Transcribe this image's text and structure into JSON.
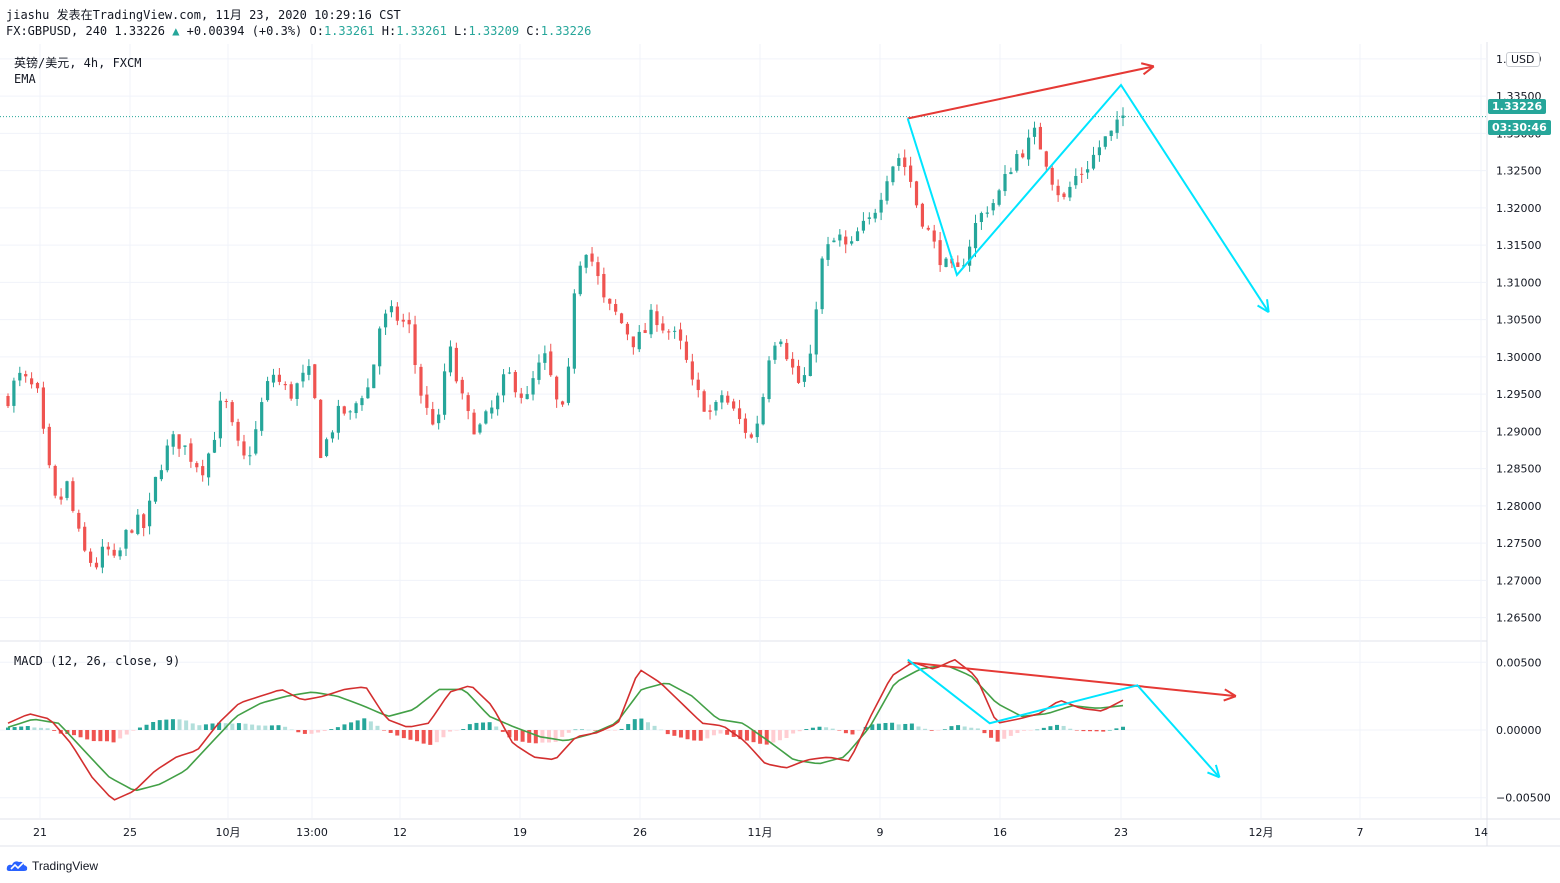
{
  "header": {
    "line1": "jiashu 发表在TradingView.com, 11月 23, 2020 10:29:16 CST",
    "symbol": "FX:GBPUSD, 240",
    "price": "1.33226",
    "change": "+0.00394 (+0.3%)",
    "open_label": "O:",
    "open": "1.33261",
    "high_label": "H:",
    "high": "1.33261",
    "low_label": "L:",
    "low": "1.33209",
    "close_label": "C:",
    "close": "1.33226"
  },
  "pane_title": "英镑/美元, 4h, FXCM",
  "indicator_label": "EMA",
  "macd_label": "MACD (12, 26, close, 9)",
  "currency": "USD",
  "last_price_badge": "1.33226",
  "countdown_badge": "03:30:46",
  "footer_brand": "TradingView",
  "colors": {
    "up": "#26a69a",
    "down": "#ef5350",
    "macd": "#d32f2f",
    "signal": "#43a047",
    "annot_red": "#e53935",
    "annot_cyan": "#00e5ff"
  },
  "chart_data": [
    {
      "type": "candlestick",
      "pair": "GBPUSD",
      "timeframe": "4h",
      "ylim": [
        1.262,
        1.342
      ],
      "yticks": [
        "1.34000",
        "1.33500",
        "1.33000",
        "1.32500",
        "1.32000",
        "1.31500",
        "1.31000",
        "1.30500",
        "1.30000",
        "1.29500",
        "1.29000",
        "1.28500",
        "1.28000",
        "1.27500",
        "1.27000",
        "1.26500"
      ],
      "xticks": [
        "21",
        "25",
        "10月",
        "13:00",
        "12",
        "19",
        "26",
        "11月",
        "9",
        "16",
        "23",
        "12月",
        "7",
        "14"
      ],
      "close_path": [
        1.2945,
        1.2975,
        1.2965,
        1.295,
        1.286,
        1.2795,
        1.283,
        1.277,
        1.273,
        1.272,
        1.2745,
        1.272,
        1.276,
        1.278,
        1.277,
        1.283,
        1.287,
        1.289,
        1.288,
        1.286,
        1.285,
        1.289,
        1.295,
        1.29,
        1.286,
        1.288,
        1.294,
        1.298,
        1.296,
        1.295,
        1.297,
        1.298,
        1.287,
        1.29,
        1.293,
        1.292,
        1.295,
        1.296,
        1.304,
        1.306,
        1.305,
        1.304,
        1.296,
        1.292,
        1.291,
        1.302,
        1.296,
        1.292,
        1.29,
        1.292,
        1.294,
        1.298,
        1.296,
        1.294,
        1.298,
        1.3,
        1.294,
        1.292,
        1.311,
        1.315,
        1.312,
        1.307,
        1.306,
        1.304,
        1.302,
        1.303,
        1.306,
        1.304,
        1.303,
        1.301,
        1.296,
        1.294,
        1.292,
        1.295,
        1.293,
        1.291,
        1.289,
        1.293,
        1.302,
        1.303,
        1.299,
        1.296,
        1.299,
        1.312,
        1.315,
        1.316,
        1.314,
        1.317,
        1.318,
        1.321,
        1.325,
        1.327,
        1.325,
        1.32,
        1.317,
        1.314,
        1.312,
        1.311,
        1.314,
        1.318,
        1.32,
        1.321,
        1.324,
        1.327,
        1.328,
        1.33,
        1.327,
        1.323,
        1.321,
        1.324,
        1.325,
        1.327,
        1.329,
        1.33,
        1.3323
      ],
      "annotations": [
        {
          "type": "trend-arrow",
          "color": "red",
          "from": [
            "Nov 10",
            1.332
          ],
          "to": [
            "Nov 25",
            1.339
          ]
        },
        {
          "type": "zigzag",
          "color": "cyan",
          "points": [
            [
              "Nov 10",
              1.332
            ],
            [
              "Nov 13",
              1.311
            ],
            [
              "Nov 23",
              1.3365
            ],
            [
              "Dec 2",
              1.306
            ]
          ]
        }
      ]
    },
    {
      "type": "line+histogram",
      "name": "MACD (12, 26, close, 9)",
      "ylim": [
        -0.0065,
        0.0065
      ],
      "yticks": [
        "0.00500",
        "0.00000",
        "−0.00500"
      ],
      "macd_path": [
        0.0005,
        0.0012,
        0.0008,
        -0.001,
        -0.0035,
        -0.0052,
        -0.0045,
        -0.003,
        -0.002,
        -0.0015,
        0.0005,
        0.002,
        0.0025,
        0.003,
        0.0022,
        0.0025,
        0.003,
        0.0032,
        0.0008,
        0.0002,
        0.0005,
        0.0028,
        0.0033,
        0.0018,
        -0.001,
        -0.002,
        -0.0022,
        -0.0005,
        -0.0002,
        0.0005,
        0.0045,
        0.0035,
        0.002,
        0.0005,
        0.0003,
        -0.0008,
        -0.0025,
        -0.0028,
        -0.0022,
        -0.002,
        -0.0023,
        0.001,
        0.004,
        0.005,
        0.0045,
        0.0052,
        0.004,
        0.0005,
        0.0008,
        0.0012,
        0.0022,
        0.0016,
        0.0014,
        0.0022
      ],
      "signal_path": [
        0.0002,
        0.0008,
        0.0005,
        -0.0015,
        -0.0035,
        -0.0045,
        -0.004,
        -0.003,
        -0.001,
        0.001,
        0.002,
        0.0025,
        0.0028,
        0.0025,
        0.0018,
        0.001,
        0.0015,
        0.003,
        0.003,
        0.001,
        0.0002,
        -0.0005,
        -0.0008,
        -0.0003,
        0.0005,
        0.003,
        0.0035,
        0.0025,
        0.0008,
        0.0005,
        -0.0008,
        -0.0022,
        -0.0025,
        -0.002,
        0.0002,
        0.0035,
        0.0045,
        0.0048,
        0.004,
        0.002,
        0.001,
        0.0012,
        0.0018,
        0.0016,
        0.0018
      ],
      "annotations": [
        {
          "type": "trend-arrow",
          "color": "red",
          "from": [
            "Nov 10",
            0.005
          ],
          "to": [
            "Nov 30",
            0.0025
          ]
        },
        {
          "type": "zigzag",
          "color": "cyan",
          "points": [
            [
              "Nov 10",
              0.0052
            ],
            [
              "Nov 15",
              0.0005
            ],
            [
              "Nov 24",
              0.0033
            ],
            [
              "Nov 29",
              -0.0035
            ]
          ]
        }
      ]
    }
  ]
}
